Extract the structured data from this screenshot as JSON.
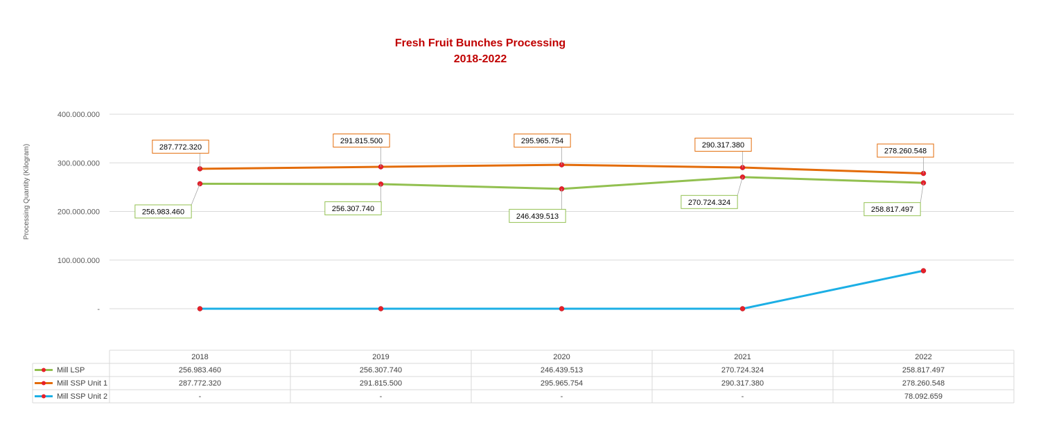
{
  "chart_data": {
    "type": "line",
    "title": [
      "Fresh Fruit Bunches Processing",
      "2018-2022"
    ],
    "ylabel": "Processing Quantity (Kilogram)",
    "xlabel": "",
    "categories": [
      "2018",
      "2019",
      "2020",
      "2021",
      "2022"
    ],
    "ylim": [
      0,
      400000000
    ],
    "yticks": [
      {
        "value": 0,
        "label": "-"
      },
      {
        "value": 100000000,
        "label": "100.000.000"
      },
      {
        "value": 200000000,
        "label": "200.000.000"
      },
      {
        "value": 300000000,
        "label": "300.000.000"
      },
      {
        "value": 400000000,
        "label": "400.000.000"
      }
    ],
    "grid": true,
    "legend": "data-table-bottom",
    "series": [
      {
        "name": "Mill LSP",
        "color": "#92c050",
        "values": [
          256983460,
          256307740,
          246439513,
          270724324,
          258817497
        ],
        "labels": [
          "256.983.460",
          "256.307.740",
          "246.439.513",
          "270.724.324",
          "258.817.497"
        ],
        "label_position": "below",
        "table_values": [
          "256.983.460",
          "256.307.740",
          "246.439.513",
          "270.724.324",
          "258.817.497"
        ]
      },
      {
        "name": "Mill SSP Unit 1",
        "color": "#e36c0a",
        "values": [
          287772320,
          291815500,
          295965754,
          290317380,
          278260548
        ],
        "labels": [
          "287.772.320",
          "291.815.500",
          "295.965.754",
          "290.317.380",
          "278.260.548"
        ],
        "label_position": "above",
        "table_values": [
          "287.772.320",
          "291.815.500",
          "295.965.754",
          "290.317.380",
          "278.260.548"
        ]
      },
      {
        "name": "Mill SSP Unit 2",
        "color": "#1cafe5",
        "values": [
          0,
          0,
          0,
          0,
          78092659
        ],
        "labels": [],
        "label_position": "none",
        "table_values": [
          "-",
          "-",
          "-",
          "-",
          "78.092.659"
        ]
      }
    ],
    "marker_color": "#e8202a"
  }
}
